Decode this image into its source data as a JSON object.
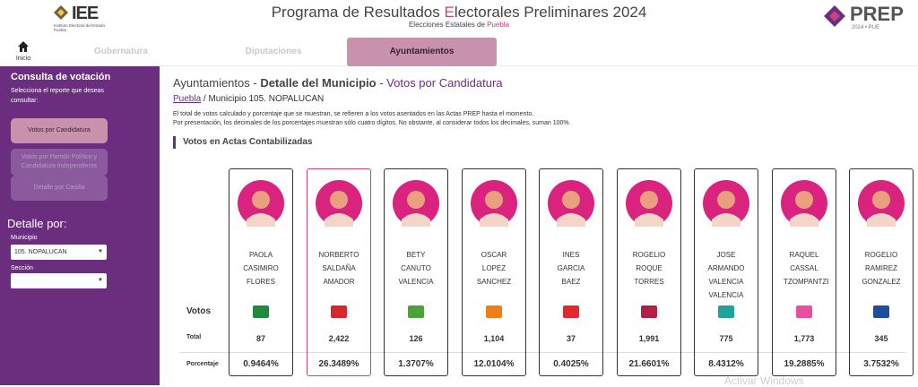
{
  "header": {
    "logo_text": "IEE",
    "logo_subtext": "Instituto Electoral del Estado Puebla",
    "title_pre": "Programa de Resultados ",
    "title_accent": "E",
    "title_post": "lectorales Preliminares 2024",
    "subtitle_pre": "Elecciones Estatales de ",
    "subtitle_accent": "Puebla",
    "prep_logo": "PREP",
    "prep_year": "2024 • PUE"
  },
  "nav": {
    "home_label": "Inicio",
    "tabs": [
      {
        "label": "Gubernatura"
      },
      {
        "label": "Diputaciones"
      },
      {
        "label": "Ayuntamientos"
      }
    ]
  },
  "sidebar": {
    "title": "Consulta de votación",
    "description": "Selecciona el reporte que deseas consultar:",
    "buttons": [
      {
        "label": "Votos por Candidatura"
      },
      {
        "label": "Votos por Partido Político y Candidatura Independiente"
      },
      {
        "label": "Detalle por Casilla"
      }
    ],
    "detalle_title": "Detalle por:",
    "municipio_label": "Municipio",
    "municipio_value": "105. NOPALUCAN",
    "seccion_label": "Sección",
    "seccion_value": ""
  },
  "main": {
    "heading_1": "Ayuntamientos - ",
    "heading_2": "Detalle del Municipio",
    "heading_3": " - ",
    "heading_4": "Votos por Candidatura",
    "crumb_link": "Puebla",
    "crumb_rest": " / Municipio 105. NOPALUCAN",
    "note_1": "El total de votos calculado y porcentaje que se muestran, se refieren a los votos asentados en las Actas PREP hasta el momento.",
    "note_2": "Por presentación, los decimales de los porcentajes muestran sólo cuatro dígitos. No obstante, al considerar todos los decimales, suman 100%.",
    "section_title": "Votos en Actas Contabilizadas",
    "row_votos": "Votos",
    "row_total": "Total",
    "row_pct": "Porcentaje",
    "watermark": "Activar Windows"
  },
  "candidates": [
    {
      "name": "PAOLA CASIMIRO FLORES",
      "party": "pri-prd-pt-icon",
      "color": "#1f8a3b",
      "total": "87",
      "pct": "0.9464%"
    },
    {
      "name": "NORBERTO SALDAÑA AMADOR",
      "party": "pt-icon",
      "color": "#d7262d",
      "total": "2,422",
      "pct": "26.3489%"
    },
    {
      "name": "BETY CANUTO VALENCIA",
      "party": "verde-icon",
      "color": "#4aa339",
      "total": "126",
      "pct": "1.3707%"
    },
    {
      "name": "OSCAR LOPEZ SANCHEZ",
      "party": "mc-icon",
      "color": "#ef7d1a",
      "total": "1,104",
      "pct": "12.0104%"
    },
    {
      "name": "INES GARCIA BAEZ",
      "party": "psi-icon",
      "color": "#e0282f",
      "total": "37",
      "pct": "0.4025%"
    },
    {
      "name": "ROGELIO ROQUE TORRES",
      "party": "morena-icon",
      "color": "#b42043",
      "total": "1,991",
      "pct": "21.6601%"
    },
    {
      "name": "JOSE ARMANDO VALENCIA VALENCIA",
      "party": "nueva-alianza-icon",
      "color": "#1fa39a",
      "total": "775",
      "pct": "8.4312%"
    },
    {
      "name": "RAQUEL CASSAL TZOMPANTZI",
      "party": "fuerza-icon",
      "color": "#e94ea3",
      "total": "1,773",
      "pct": "19.2885%"
    },
    {
      "name": "ROGELIO RAMIREZ GONZALEZ",
      "party": "pan-prd-icon",
      "color": "#1f4e9a",
      "total": "345",
      "pct": "3.7532%"
    }
  ]
}
